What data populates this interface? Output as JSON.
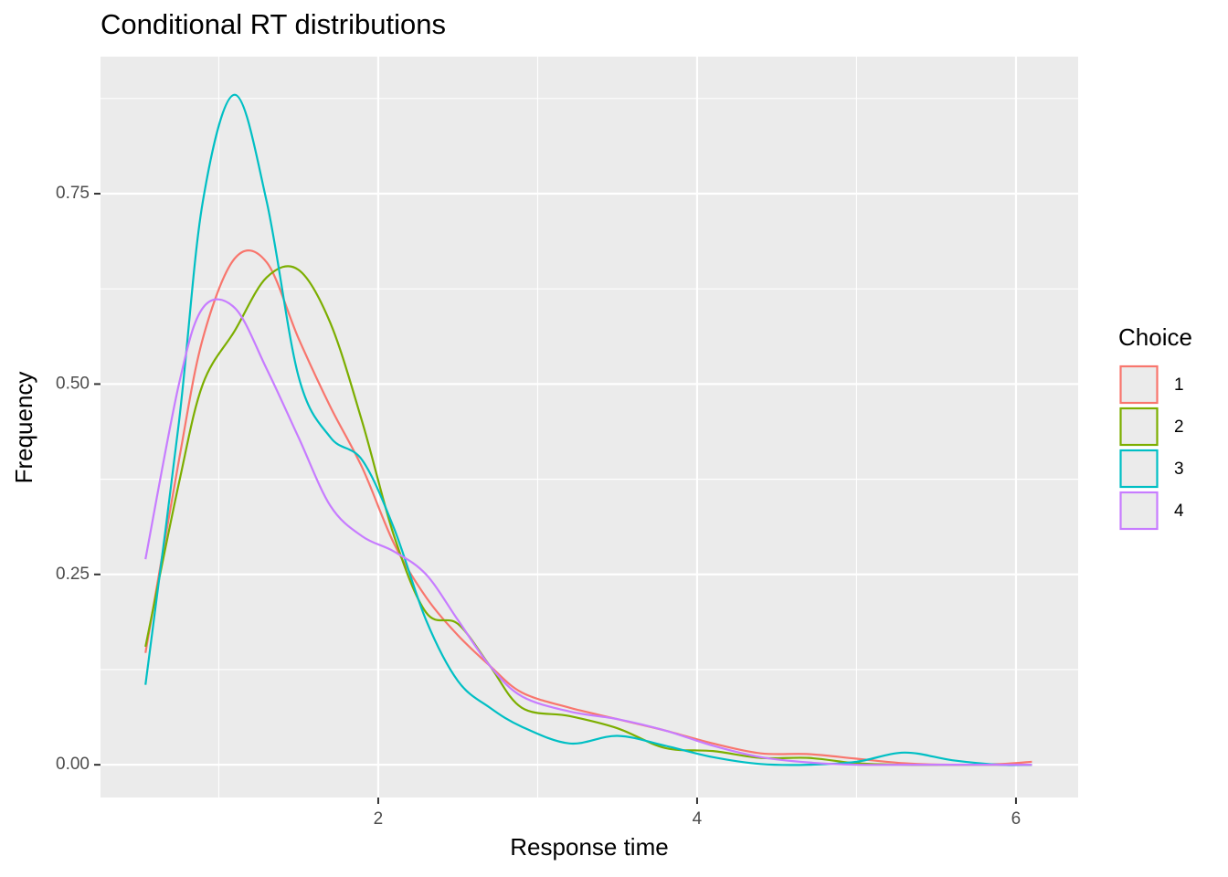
{
  "chart_data": {
    "type": "line",
    "title": "Conditional RT distributions",
    "x_label": "Response time",
    "y_label": "Frequency",
    "legend_title": "Choice",
    "legend": "right",
    "grid": true,
    "xlim": [
      0.258,
      6.39
    ],
    "ylim": [
      -0.043,
      0.93
    ],
    "xticks": [
      2,
      4,
      6
    ],
    "yticks": [
      {
        "value": 0,
        "label": "0.00"
      },
      {
        "value": 0.25,
        "label": "0.25"
      },
      {
        "value": 0.5,
        "label": "0.50"
      },
      {
        "value": 0.75,
        "label": "0.75"
      }
    ],
    "x": [
      0.54,
      0.75,
      0.9,
      1.1,
      1.3,
      1.5,
      1.7,
      1.9,
      2.1,
      2.3,
      2.5,
      2.7,
      2.9,
      3.2,
      3.5,
      3.8,
      4.1,
      4.4,
      4.7,
      5.0,
      5.3,
      5.6,
      5.9,
      6.1
    ],
    "series": [
      {
        "name": "1",
        "color": "#F8766D",
        "values": [
          0.147,
          0.4,
          0.56,
          0.665,
          0.66,
          0.56,
          0.47,
          0.39,
          0.29,
          0.22,
          0.17,
          0.13,
          0.095,
          0.075,
          0.06,
          0.045,
          0.028,
          0.015,
          0.014,
          0.008,
          0.002,
          0.0,
          0.001,
          0.004
        ]
      },
      {
        "name": "2",
        "color": "#7CAE00",
        "values": [
          0.155,
          0.37,
          0.5,
          0.57,
          0.64,
          0.65,
          0.58,
          0.45,
          0.3,
          0.2,
          0.185,
          0.13,
          0.075,
          0.064,
          0.048,
          0.022,
          0.018,
          0.009,
          0.009,
          0.002,
          0.0,
          0.0,
          0.0,
          0.0
        ]
      },
      {
        "name": "3",
        "color": "#00BFC4",
        "values": [
          0.105,
          0.45,
          0.74,
          0.88,
          0.74,
          0.51,
          0.43,
          0.4,
          0.31,
          0.19,
          0.11,
          0.075,
          0.05,
          0.028,
          0.038,
          0.025,
          0.01,
          0.001,
          0.0,
          0.004,
          0.016,
          0.006,
          0.0,
          0.0
        ]
      },
      {
        "name": "4",
        "color": "#C77CFF",
        "values": [
          0.27,
          0.5,
          0.6,
          0.6,
          0.52,
          0.43,
          0.34,
          0.3,
          0.28,
          0.25,
          0.19,
          0.13,
          0.09,
          0.07,
          0.06,
          0.045,
          0.025,
          0.01,
          0.003,
          0.0,
          0.0,
          0.0,
          0.0,
          0.0
        ]
      }
    ]
  }
}
